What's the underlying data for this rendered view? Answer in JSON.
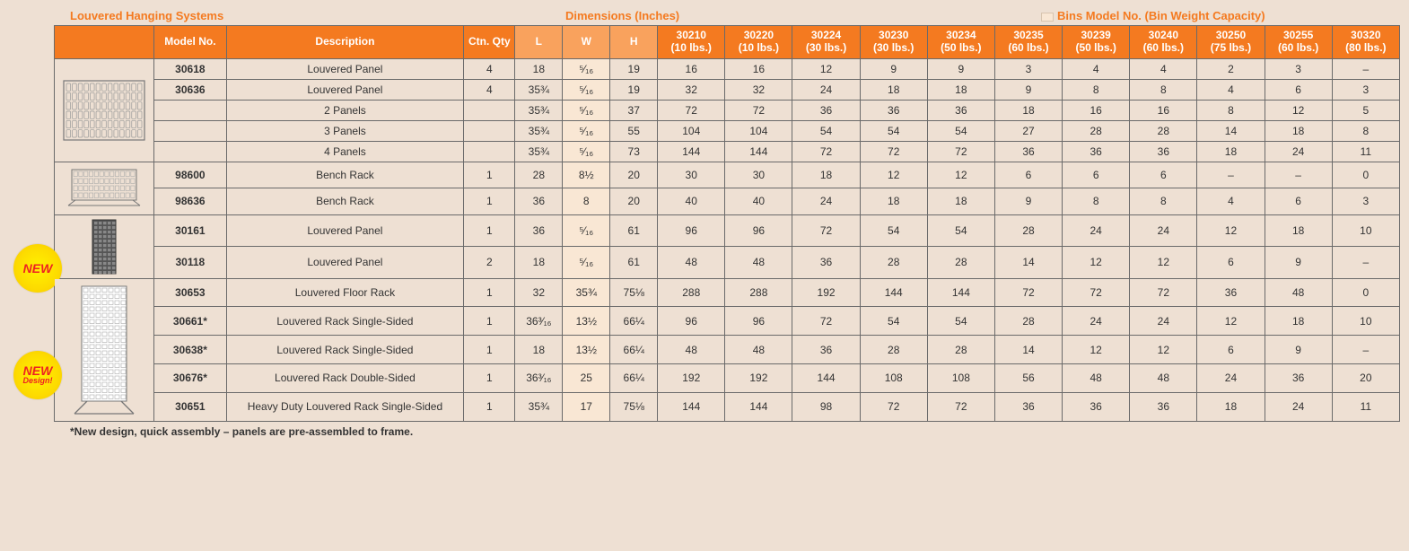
{
  "titles": {
    "section": "Louvered Hanging Systems",
    "dimensions": "Dimensions (Inches)",
    "bins": "Bins Model No. (Bin Weight Capacity)"
  },
  "headers": {
    "model": "Model No.",
    "desc": "Description",
    "qty": "Ctn. Qty",
    "L": "L",
    "W": "W",
    "H": "H"
  },
  "bin_cols": [
    {
      "num": "30210",
      "cap": "(10 lbs.)"
    },
    {
      "num": "30220",
      "cap": "(10 lbs.)"
    },
    {
      "num": "30224",
      "cap": "(30 lbs.)"
    },
    {
      "num": "30230",
      "cap": "(30 lbs.)"
    },
    {
      "num": "30234",
      "cap": "(50 lbs.)"
    },
    {
      "num": "30235",
      "cap": "(60 lbs.)"
    },
    {
      "num": "30239",
      "cap": "(50 lbs.)"
    },
    {
      "num": "30240",
      "cap": "(60 lbs.)"
    },
    {
      "num": "30250",
      "cap": "(75 lbs.)"
    },
    {
      "num": "30255",
      "cap": "(60 lbs.)"
    },
    {
      "num": "30320",
      "cap": "(80 lbs.)"
    }
  ],
  "badges": {
    "new": "NEW",
    "design": "Design!"
  },
  "footnote": "*New design, quick assembly – panels are pre-assembled to frame.",
  "rows": [
    {
      "model": "30618",
      "desc": "Louvered Panel",
      "qty": "4",
      "L": "18",
      "W": "⁵⁄₁₆",
      "H": "19",
      "b": [
        "16",
        "16",
        "12",
        "9",
        "9",
        "3",
        "4",
        "4",
        "2",
        "3",
        "–"
      ]
    },
    {
      "model": "30636",
      "desc": "Louvered Panel",
      "qty": "4",
      "L": "35¾",
      "W": "⁵⁄₁₆",
      "H": "19",
      "b": [
        "32",
        "32",
        "24",
        "18",
        "18",
        "9",
        "8",
        "8",
        "4",
        "6",
        "3"
      ]
    },
    {
      "model": "",
      "desc": "2 Panels",
      "qty": "",
      "L": "35¾",
      "W": "⁵⁄₁₆",
      "H": "37",
      "b": [
        "72",
        "72",
        "36",
        "36",
        "36",
        "18",
        "16",
        "16",
        "8",
        "12",
        "5"
      ]
    },
    {
      "model": "",
      "desc": "3 Panels",
      "qty": "",
      "L": "35¾",
      "W": "⁵⁄₁₆",
      "H": "55",
      "b": [
        "104",
        "104",
        "54",
        "54",
        "54",
        "27",
        "28",
        "28",
        "14",
        "18",
        "8"
      ]
    },
    {
      "model": "",
      "desc": "4 Panels",
      "qty": "",
      "L": "35¾",
      "W": "⁵⁄₁₆",
      "H": "73",
      "b": [
        "144",
        "144",
        "72",
        "72",
        "72",
        "36",
        "36",
        "36",
        "18",
        "24",
        "11"
      ]
    },
    {
      "model": "98600",
      "desc": "Bench Rack",
      "qty": "1",
      "L": "28",
      "W": "8½",
      "H": "20",
      "b": [
        "30",
        "30",
        "18",
        "12",
        "12",
        "6",
        "6",
        "6",
        "–",
        "–",
        "0"
      ]
    },
    {
      "model": "98636",
      "desc": "Bench Rack",
      "qty": "1",
      "L": "36",
      "W": "8",
      "H": "20",
      "b": [
        "40",
        "40",
        "24",
        "18",
        "18",
        "9",
        "8",
        "8",
        "4",
        "6",
        "3"
      ]
    },
    {
      "model": "30161",
      "desc": "Louvered Panel",
      "qty": "1",
      "L": "36",
      "W": "⁵⁄₁₆",
      "H": "61",
      "b": [
        "96",
        "96",
        "72",
        "54",
        "54",
        "28",
        "24",
        "24",
        "12",
        "18",
        "10"
      ]
    },
    {
      "model": "30118",
      "desc": "Louvered Panel",
      "qty": "2",
      "L": "18",
      "W": "⁵⁄₁₆",
      "H": "61",
      "b": [
        "48",
        "48",
        "36",
        "28",
        "28",
        "14",
        "12",
        "12",
        "6",
        "9",
        "–"
      ]
    },
    {
      "model": "30653",
      "desc": "Louvered Floor Rack",
      "qty": "1",
      "L": "32",
      "W": "35¾",
      "H": "75⅛",
      "b": [
        "288",
        "288",
        "192",
        "144",
        "144",
        "72",
        "72",
        "72",
        "36",
        "48",
        "0"
      ]
    },
    {
      "model": "30661*",
      "desc": "Louvered Rack Single-Sided",
      "qty": "1",
      "L": "36³⁄₁₆",
      "W": "13½",
      "H": "66¼",
      "b": [
        "96",
        "96",
        "72",
        "54",
        "54",
        "28",
        "24",
        "24",
        "12",
        "18",
        "10"
      ]
    },
    {
      "model": "30638*",
      "desc": "Louvered Rack Single-Sided",
      "qty": "1",
      "L": "18",
      "W": "13½",
      "H": "66¼",
      "b": [
        "48",
        "48",
        "36",
        "28",
        "28",
        "14",
        "12",
        "12",
        "6",
        "9",
        "–"
      ]
    },
    {
      "model": "30676*",
      "desc": "Louvered Rack Double-Sided",
      "qty": "1",
      "L": "36³⁄₁₆",
      "W": "25",
      "H": "66¼",
      "b": [
        "192",
        "192",
        "144",
        "108",
        "108",
        "56",
        "48",
        "48",
        "24",
        "36",
        "20"
      ]
    },
    {
      "model": "30651",
      "desc": "Heavy Duty Louvered Rack Single-Sided",
      "qty": "1",
      "L": "35¾",
      "W": "17",
      "H": "75⅛",
      "b": [
        "144",
        "144",
        "98",
        "72",
        "72",
        "36",
        "36",
        "36",
        "18",
        "24",
        "11"
      ]
    }
  ]
}
